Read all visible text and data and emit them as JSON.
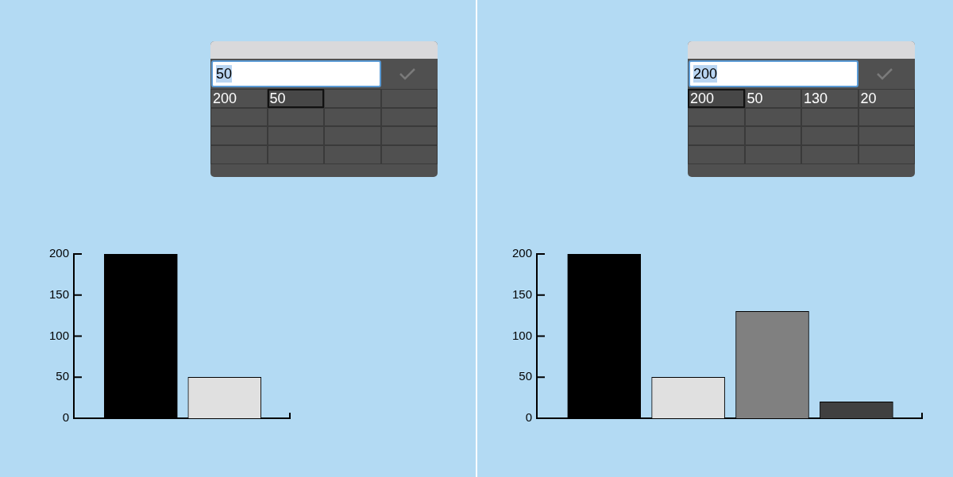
{
  "chart_data": [
    {
      "type": "bar",
      "categories": [
        null,
        null
      ],
      "values": [
        200,
        50
      ],
      "colors": [
        "#000000",
        "#e0e0e0"
      ],
      "ylim": [
        0,
        200
      ],
      "yticks": [
        0,
        50,
        100,
        150,
        200
      ],
      "tick_labels": "y",
      "annotations": [
        "50",
        "200",
        "50"
      ]
    },
    {
      "type": "bar",
      "categories": [
        null,
        null,
        null,
        null
      ],
      "values": [
        200,
        50,
        130,
        20
      ],
      "colors": [
        "#000000",
        "#e0e0e0",
        "#808080",
        "#404040"
      ],
      "ylim": [
        0,
        200
      ],
      "yticks": [
        0,
        50,
        100,
        150,
        200
      ],
      "tick_labels": "y",
      "annotations": [
        "200",
        "200",
        "50",
        "130",
        "20"
      ]
    }
  ]
}
